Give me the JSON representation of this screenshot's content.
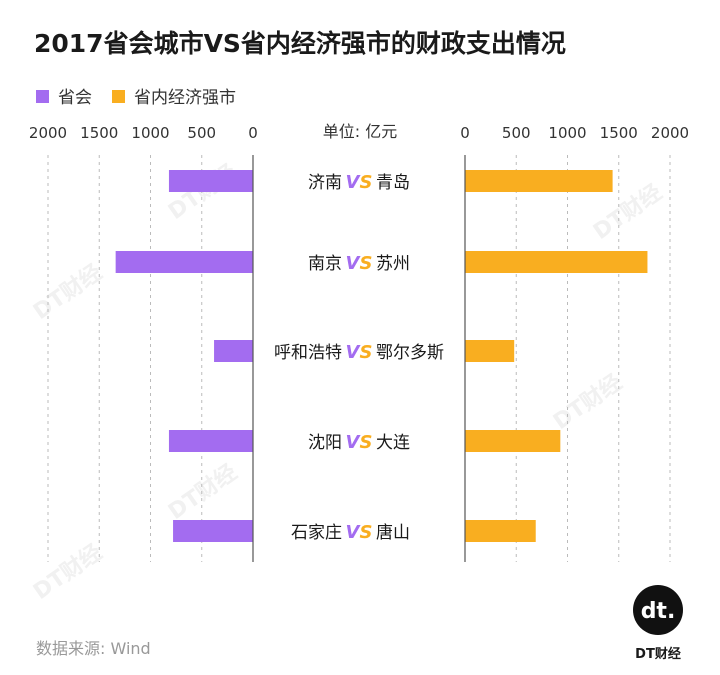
{
  "title": "2017省会城市VS省内经济强市的财政支出情况",
  "unit_label": "单位: 亿元",
  "source": "数据来源: Wind",
  "logo": {
    "text": "DT财经",
    "mark": "dt."
  },
  "watermark": "DT财经",
  "colors": {
    "capital": "#a36cf0",
    "city": "#f9ae20",
    "axis": "#555555",
    "grid": "#bbbbbb"
  },
  "chart_data": {
    "type": "bar",
    "orientation": "horizontal-butterfly",
    "title": "2017省会城市VS省内经济强市的财政支出情况",
    "unit": "单位: 亿元",
    "vs_label": "VS",
    "pairs": [
      {
        "left": "济南",
        "right": "青岛"
      },
      {
        "left": "南京",
        "right": "苏州"
      },
      {
        "left": "呼和浩特",
        "right": "鄂尔多斯"
      },
      {
        "left": "沈阳",
        "right": "大连"
      },
      {
        "left": "石家庄",
        "right": "唐山"
      }
    ],
    "series": [
      {
        "name": "省会",
        "side": "left",
        "values": [
          820,
          1340,
          380,
          820,
          780
        ]
      },
      {
        "name": "省内经济强市",
        "side": "right",
        "values": [
          1440,
          1780,
          480,
          930,
          690
        ]
      }
    ],
    "left_ticks": [
      "2000",
      "1500",
      "1000",
      "500",
      "0"
    ],
    "right_ticks": [
      "0",
      "500",
      "1000",
      "1500",
      "2000"
    ],
    "xlim": [
      0,
      2000
    ],
    "legend": {
      "position": "top-left"
    },
    "grid": true
  }
}
